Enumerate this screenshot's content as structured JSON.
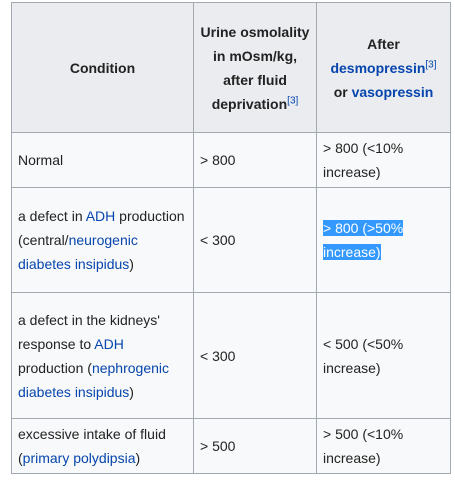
{
  "table": {
    "headers": {
      "condition": "Condition",
      "urine": "Urine osmolality in mOsm/kg, after fluid deprivation",
      "urine_ref": "[3]",
      "after": "After",
      "desmopressin": "desmopressin",
      "desmopressin_ref": "[3]",
      "or": "or",
      "vasopressin": "vasopressin"
    },
    "rows": [
      {
        "condition": "Normal",
        "urine": "> 800",
        "after": "> 800 (<10% increase)"
      },
      {
        "cond_a": "a defect in ",
        "cond_link1": "ADH",
        "cond_b": " production (central/",
        "cond_link2": "neurogenic diabetes insipidus",
        "cond_c": ")",
        "urine": "< 300",
        "after": "> 800 (>50% increase)"
      },
      {
        "cond_a": "a defect in the kidneys' response to ",
        "cond_link1": "ADH",
        "cond_b": " production (",
        "cond_link2": "nephrogenic diabetes insipidus",
        "cond_c": ")",
        "urine": "< 300",
        "after": "< 500 (<50% increase)"
      },
      {
        "cond_a": "excessive intake of fluid (",
        "cond_link1": "primary polydipsia",
        "cond_c": ")",
        "urine": "> 500",
        "after": "> 500 (<10% increase)"
      }
    ]
  },
  "colors": {
    "link": "#0645ad",
    "header_bg": "#eaecf0",
    "cell_bg": "#f8f9fa",
    "border": "#a2a9b1",
    "selection": "#3399ff"
  }
}
